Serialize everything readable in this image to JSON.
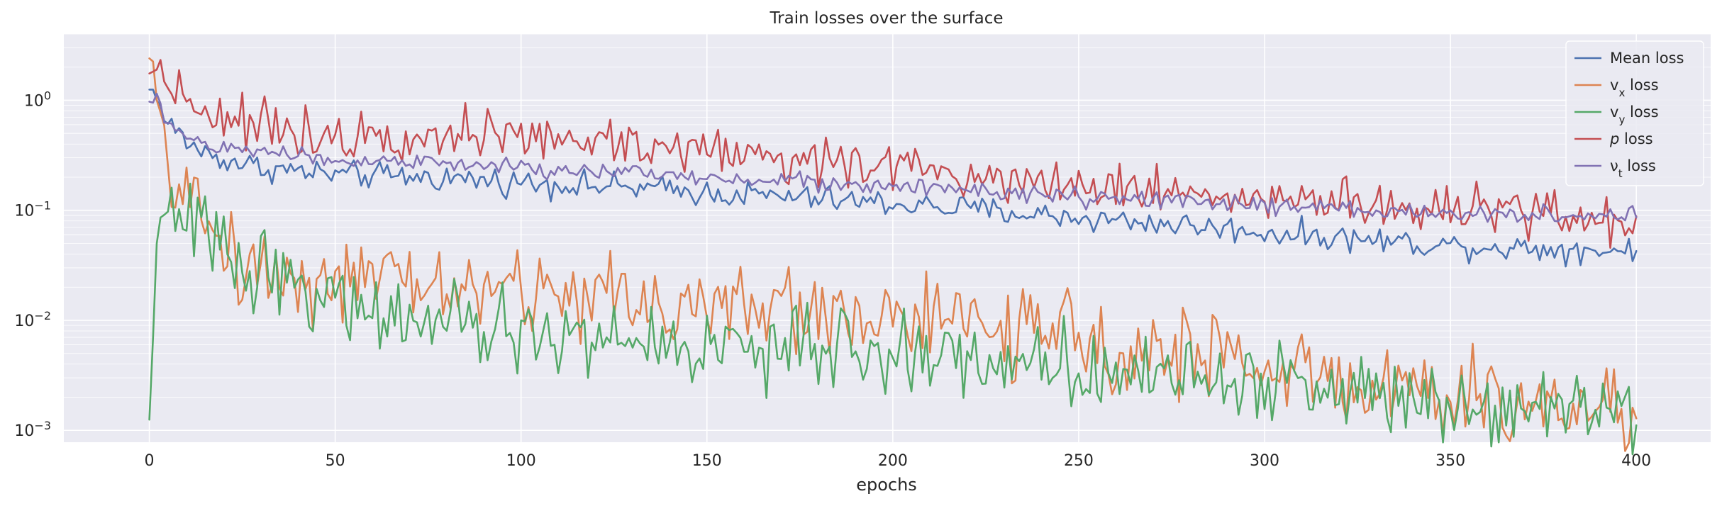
{
  "chart_data": {
    "type": "line",
    "title": "Train losses over the surface",
    "xlabel": "epochs",
    "ylabel": "",
    "yscale": "log",
    "xlim": [
      -23,
      420
    ],
    "ylim": [
      0.00078,
      4.0
    ],
    "xticks": [
      0,
      50,
      100,
      150,
      200,
      250,
      300,
      350,
      400
    ],
    "xtick_labels": [
      "0",
      "50",
      "100",
      "150",
      "200",
      "250",
      "300",
      "350",
      "400"
    ],
    "yticks": [
      0.001,
      0.01,
      0.1,
      1
    ],
    "ytick_labels": [
      {
        "base": "10",
        "exp": "−3"
      },
      {
        "base": "10",
        "exp": "−2"
      },
      {
        "base": "10",
        "exp": "−1"
      },
      {
        "base": "10",
        "exp": "0"
      }
    ],
    "legend": "top-right",
    "grid": true,
    "background": "#eaeaf2",
    "n_epochs": 400,
    "series": [
      {
        "name": "Mean loss",
        "legend_parts": [
          {
            "t": "Mean loss"
          }
        ],
        "color": "#4c72b0",
        "noise": 0.06,
        "key_points": [
          [
            0,
            1.25
          ],
          [
            1,
            1.25
          ],
          [
            2,
            1.0
          ],
          [
            3,
            0.78
          ],
          [
            5,
            0.62
          ],
          [
            8,
            0.5
          ],
          [
            10,
            0.42
          ],
          [
            15,
            0.33
          ],
          [
            20,
            0.29
          ],
          [
            30,
            0.245
          ],
          [
            50,
            0.21
          ],
          [
            75,
            0.2
          ],
          [
            100,
            0.18
          ],
          [
            130,
            0.16
          ],
          [
            150,
            0.145
          ],
          [
            175,
            0.13
          ],
          [
            200,
            0.115
          ],
          [
            225,
            0.1
          ],
          [
            250,
            0.085
          ],
          [
            275,
            0.075
          ],
          [
            300,
            0.063
          ],
          [
            325,
            0.055
          ],
          [
            350,
            0.048
          ],
          [
            375,
            0.045
          ],
          [
            400,
            0.043
          ]
        ]
      },
      {
        "name": "v_x loss",
        "legend_parts": [
          {
            "t": "v"
          },
          {
            "t": "x",
            "sub": true
          },
          {
            "t": " loss"
          }
        ],
        "color": "#dd8452",
        "noise": 0.2,
        "key_points": [
          [
            0,
            2.4
          ],
          [
            1,
            2.25
          ],
          [
            2,
            1.0
          ],
          [
            3,
            0.5
          ],
          [
            4,
            0.22
          ],
          [
            6,
            0.22
          ],
          [
            8,
            0.2
          ],
          [
            10,
            0.14
          ],
          [
            12,
            0.1
          ],
          [
            15,
            0.08
          ],
          [
            20,
            0.05
          ],
          [
            25,
            0.033
          ],
          [
            30,
            0.03
          ],
          [
            40,
            0.026
          ],
          [
            50,
            0.023
          ],
          [
            75,
            0.021
          ],
          [
            100,
            0.018
          ],
          [
            125,
            0.017
          ],
          [
            150,
            0.013
          ],
          [
            175,
            0.0125
          ],
          [
            200,
            0.011
          ],
          [
            225,
            0.0085
          ],
          [
            250,
            0.0065
          ],
          [
            275,
            0.0052
          ],
          [
            300,
            0.004
          ],
          [
            325,
            0.0027
          ],
          [
            350,
            0.0019
          ],
          [
            375,
            0.0017
          ],
          [
            400,
            0.0017
          ]
        ]
      },
      {
        "name": "v_y loss",
        "legend_parts": [
          {
            "t": "v"
          },
          {
            "t": "y",
            "sub": true
          },
          {
            "t": " loss"
          }
        ],
        "color": "#55a868",
        "noise": 0.18,
        "key_points": [
          [
            0,
            0.00125
          ],
          [
            1,
            0.007
          ],
          [
            2,
            0.05
          ],
          [
            4,
            0.065
          ],
          [
            6,
            0.08
          ],
          [
            10,
            0.082
          ],
          [
            13,
            0.072
          ],
          [
            16,
            0.06
          ],
          [
            20,
            0.045
          ],
          [
            25,
            0.035
          ],
          [
            30,
            0.03
          ],
          [
            40,
            0.022
          ],
          [
            50,
            0.015
          ],
          [
            75,
            0.009
          ],
          [
            100,
            0.0075
          ],
          [
            125,
            0.0065
          ],
          [
            150,
            0.0058
          ],
          [
            175,
            0.0055
          ],
          [
            200,
            0.005
          ],
          [
            225,
            0.0045
          ],
          [
            250,
            0.0038
          ],
          [
            275,
            0.0033
          ],
          [
            300,
            0.0027
          ],
          [
            325,
            0.0023
          ],
          [
            350,
            0.0019
          ],
          [
            375,
            0.0018
          ],
          [
            400,
            0.0018
          ]
        ]
      },
      {
        "name": "p loss",
        "legend_parts": [
          {
            "t": "p",
            "italic": true
          },
          {
            "t": " loss"
          }
        ],
        "color": "#c44e52",
        "noise": 0.11,
        "key_points": [
          [
            0,
            1.75
          ],
          [
            2,
            1.9
          ],
          [
            5,
            1.6
          ],
          [
            8,
            1.3
          ],
          [
            10,
            1.05
          ],
          [
            15,
            0.85
          ],
          [
            20,
            0.7
          ],
          [
            30,
            0.58
          ],
          [
            50,
            0.5
          ],
          [
            75,
            0.52
          ],
          [
            100,
            0.45
          ],
          [
            125,
            0.42
          ],
          [
            150,
            0.36
          ],
          [
            175,
            0.29
          ],
          [
            200,
            0.25
          ],
          [
            225,
            0.21
          ],
          [
            250,
            0.18
          ],
          [
            275,
            0.15
          ],
          [
            300,
            0.13
          ],
          [
            325,
            0.11
          ],
          [
            350,
            0.1
          ],
          [
            375,
            0.088
          ],
          [
            400,
            0.082
          ]
        ]
      },
      {
        "name": "ν_t loss",
        "legend_parts": [
          {
            "t": "ν"
          },
          {
            "t": "t",
            "sub": true
          },
          {
            "t": " loss"
          }
        ],
        "color": "#8172b3",
        "noise": 0.04,
        "key_points": [
          [
            0,
            0.97
          ],
          [
            1,
            0.95
          ],
          [
            2,
            1.15
          ],
          [
            3,
            0.85
          ],
          [
            5,
            0.65
          ],
          [
            8,
            0.52
          ],
          [
            10,
            0.45
          ],
          [
            15,
            0.4
          ],
          [
            20,
            0.37
          ],
          [
            30,
            0.34
          ],
          [
            50,
            0.29
          ],
          [
            75,
            0.27
          ],
          [
            100,
            0.24
          ],
          [
            125,
            0.22
          ],
          [
            150,
            0.2
          ],
          [
            175,
            0.19
          ],
          [
            200,
            0.16
          ],
          [
            225,
            0.15
          ],
          [
            250,
            0.13
          ],
          [
            275,
            0.12
          ],
          [
            300,
            0.11
          ],
          [
            325,
            0.1
          ],
          [
            350,
            0.095
          ],
          [
            375,
            0.09
          ],
          [
            400,
            0.088
          ]
        ]
      }
    ]
  }
}
